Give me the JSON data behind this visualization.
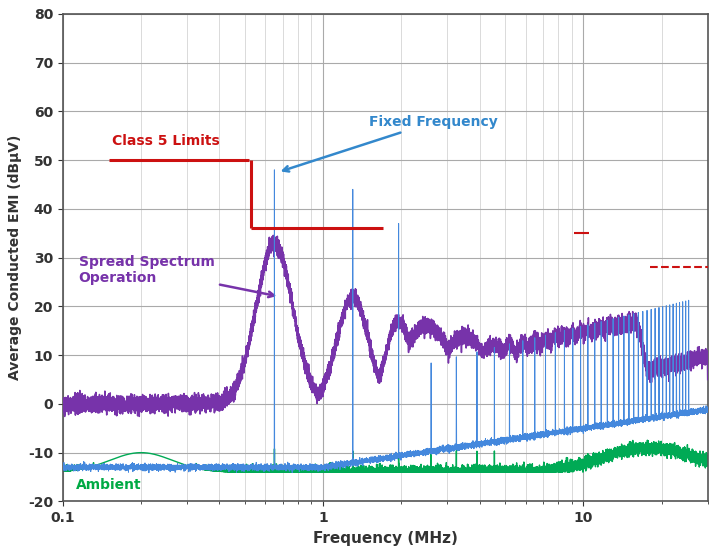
{
  "xlabel": "Frequency (MHz)",
  "ylabel": "Average Conducted EMI (dBμV)",
  "xlim": [
    0.1,
    30
  ],
  "ylim": [
    -20,
    80
  ],
  "yticks": [
    -20,
    -10,
    0,
    10,
    20,
    30,
    40,
    50,
    60,
    70,
    80
  ],
  "background_color": "#ffffff",
  "grid_color": "#cccccc",
  "fixed_freq_color": "#4488dd",
  "spread_spectrum_color": "#7733aa",
  "ambient_color": "#00aa55",
  "class5_limit_color": "#cc1111",
  "annotation_fixed_color": "#3388cc",
  "annotation_spread_color": "#7733aa",
  "annotation_ambient_color": "#00aa44",
  "annotation_class5_color": "#cc1111"
}
